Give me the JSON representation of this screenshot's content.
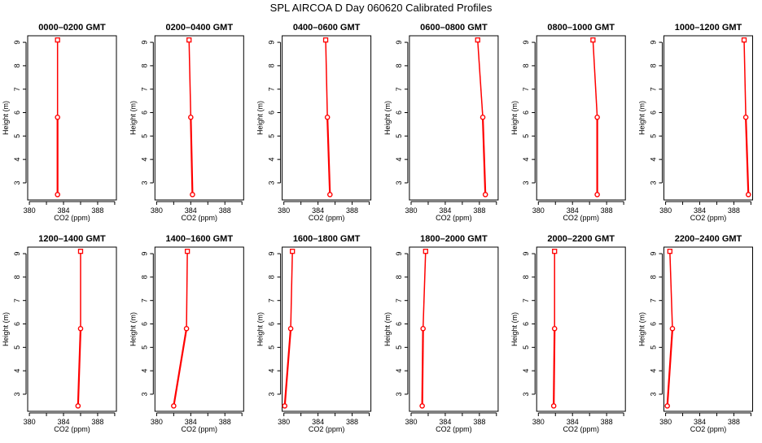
{
  "chart_data": {
    "type": "line",
    "title": "SPL AIRCOA D  Day 060620  Calibrated Profiles",
    "xlabel": "CO2 (ppm)",
    "ylabel": "Height (m)",
    "xlim": [
      379.8,
      390.2
    ],
    "ylim": [
      2.27,
      9.28
    ],
    "xticks": [
      380,
      382,
      384,
      386,
      388,
      390
    ],
    "xtick_labels": [
      "380",
      "384",
      "388"
    ],
    "xtick_label_values": [
      380,
      384,
      388
    ],
    "yticks": [
      3,
      4,
      5,
      6,
      7,
      8,
      9
    ],
    "ytick_labels": [
      "3",
      "4",
      "5",
      "6",
      "7",
      "8",
      "9"
    ],
    "heights": [
      9.1,
      5.8,
      2.5
    ],
    "color": "#ff0000",
    "panels": [
      {
        "title": "0000–0200 GMT",
        "co2": [
          383.3,
          383.3,
          383.3
        ]
      },
      {
        "title": "0200–0400 GMT",
        "co2": [
          383.8,
          384.0,
          384.2
        ]
      },
      {
        "title": "0400–0600 GMT",
        "co2": [
          384.9,
          385.1,
          385.4
        ]
      },
      {
        "title": "0600–0800 GMT",
        "co2": [
          387.8,
          388.4,
          388.7
        ]
      },
      {
        "title": "0800–1000 GMT",
        "co2": [
          386.4,
          386.9,
          386.9
        ]
      },
      {
        "title": "1000–1200 GMT",
        "co2": [
          389.2,
          389.4,
          389.7
        ]
      },
      {
        "title": "1200–1400 GMT",
        "co2": [
          386.0,
          386.0,
          385.7
        ]
      },
      {
        "title": "1400–1600 GMT",
        "co2": [
          383.6,
          383.5,
          382.0
        ]
      },
      {
        "title": "1600–1800 GMT",
        "co2": [
          381.0,
          380.8,
          380.1
        ]
      },
      {
        "title": "1800–2000 GMT",
        "co2": [
          381.7,
          381.4,
          381.3
        ]
      },
      {
        "title": "2000–2200 GMT",
        "co2": [
          381.9,
          381.9,
          381.8
        ]
      },
      {
        "title": "2200–2400 GMT",
        "co2": [
          380.5,
          380.8,
          380.2
        ]
      }
    ]
  }
}
